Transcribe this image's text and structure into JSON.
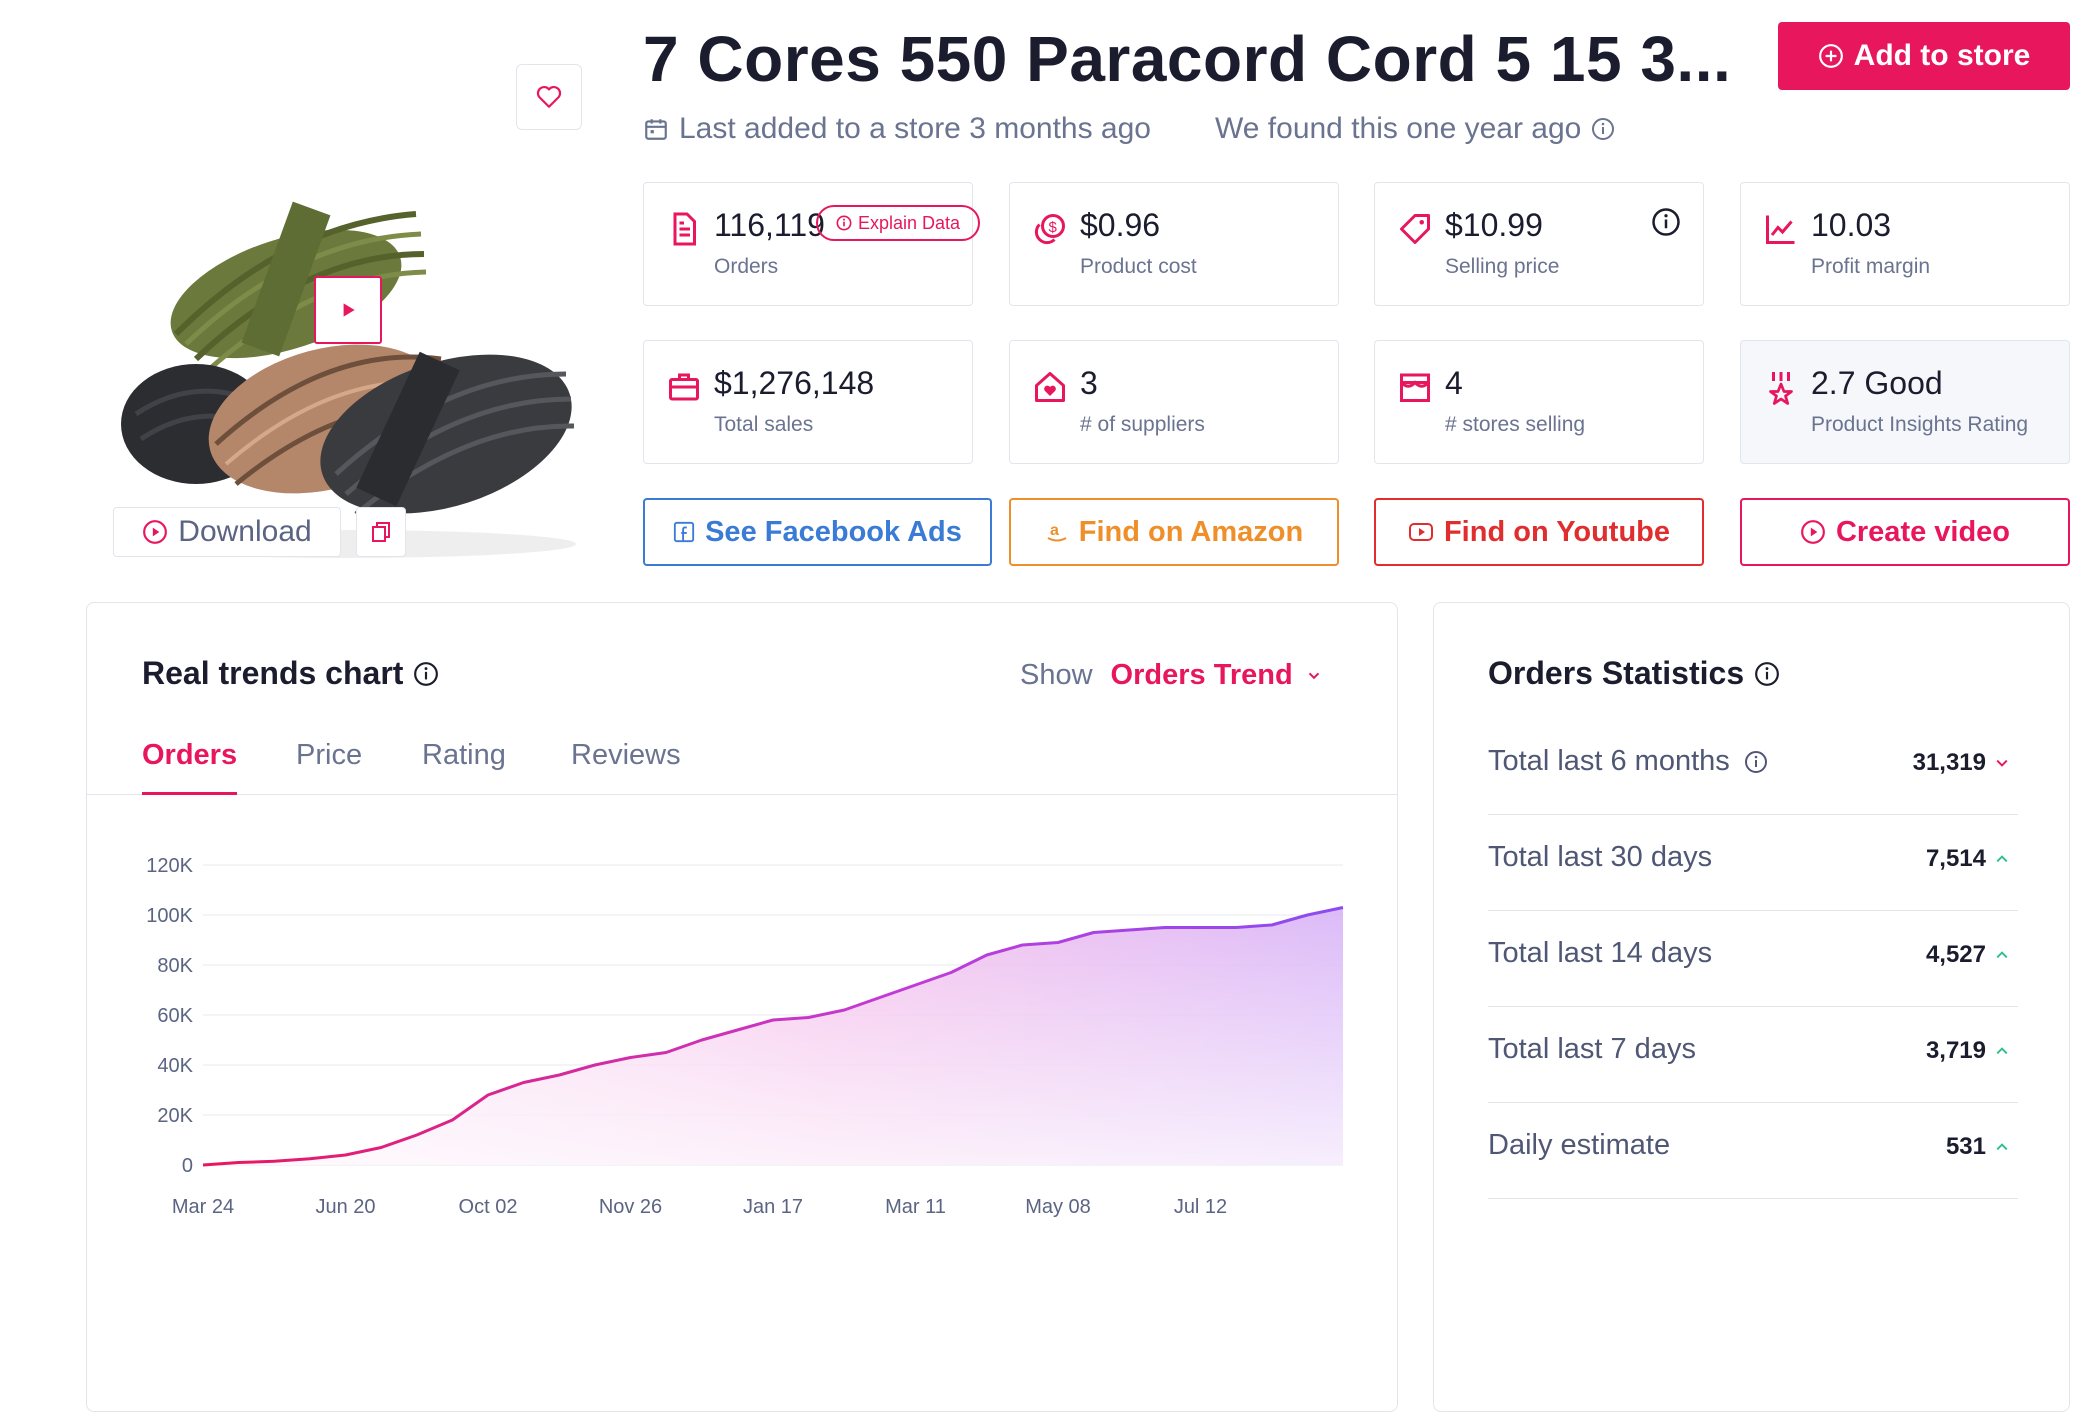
{
  "product": {
    "title": "7 Cores 550 Paracord Cord 5 15 3...",
    "last_added": "Last added to a store 3 months ago",
    "found": "We found this one year ago",
    "add_to_store": "Add to store",
    "download": "Download"
  },
  "stats": [
    {
      "value": "116,119",
      "label": "Orders",
      "icon": "document-icon"
    },
    {
      "value": "$0.96",
      "label": "Product cost",
      "icon": "coins-icon"
    },
    {
      "value": "$10.99",
      "label": "Selling price",
      "icon": "tag-icon"
    },
    {
      "value": "10.03",
      "label": "Profit margin",
      "icon": "trend-chart-icon"
    },
    {
      "value": "$1,276,148",
      "label": "Total sales",
      "icon": "briefcase-icon"
    },
    {
      "value": "3",
      "label": "# of suppliers",
      "icon": "house-heart-icon"
    },
    {
      "value": "4",
      "label": "# stores selling",
      "icon": "storefront-icon"
    },
    {
      "value": "2.7 Good",
      "label": "Product Insights Rating",
      "icon": "award-icon"
    }
  ],
  "explain_data": "Explain Data",
  "actions": {
    "facebook": "See Facebook Ads",
    "amazon": "Find on Amazon",
    "youtube": "Find on Youtube",
    "video": "Create video"
  },
  "trends": {
    "title": "Real trends chart",
    "show_label": "Show",
    "show_value": "Orders Trend",
    "tabs": [
      "Orders",
      "Price",
      "Rating",
      "Reviews"
    ]
  },
  "chart_data": {
    "type": "area",
    "title": "",
    "xlabel": "",
    "ylabel": "",
    "ylim": [
      0,
      120000
    ],
    "yticks": [
      0,
      20000,
      40000,
      60000,
      80000,
      100000,
      120000
    ],
    "ytick_labels": [
      "0",
      "20K",
      "40K",
      "60K",
      "80K",
      "100K",
      "120K"
    ],
    "xtick_labels": [
      "Mar 24",
      "Jun 20",
      "Oct 02",
      "Nov 26",
      "Jan 17",
      "Mar 11",
      "May 08",
      "Jul 12"
    ],
    "grid": true,
    "series": [
      {
        "values": [
          0,
          1000,
          1500,
          2500,
          4000,
          7000,
          12000,
          18000,
          28000,
          33000,
          36000,
          40000,
          43000,
          45000,
          50000,
          54000,
          58000,
          59000,
          62000,
          67000,
          72000,
          77000,
          84000,
          88000,
          89000,
          93000,
          94000,
          95000,
          95000,
          95000,
          96000,
          100000,
          103000
        ]
      }
    ]
  },
  "order_stats": {
    "title": "Orders Statistics",
    "rows": [
      {
        "label": "Total last 6 months",
        "value": "31,319",
        "trend": "down",
        "has_info": true
      },
      {
        "label": "Total last 30 days",
        "value": "7,514",
        "trend": "up",
        "has_info": false
      },
      {
        "label": "Total last 14 days",
        "value": "4,527",
        "trend": "up",
        "has_info": false
      },
      {
        "label": "Total last 7 days",
        "value": "3,719",
        "trend": "up",
        "has_info": false
      },
      {
        "label": "Daily estimate",
        "value": "531",
        "trend": "up",
        "has_info": false
      }
    ]
  },
  "colors": {
    "accent": "#e8175d",
    "facebook": "#3a7bd5",
    "amazon": "#ef8f2a",
    "youtube": "#e02d2d",
    "line": "#9a4cf0",
    "up": "#2fbf8f",
    "down": "#e8175d"
  }
}
